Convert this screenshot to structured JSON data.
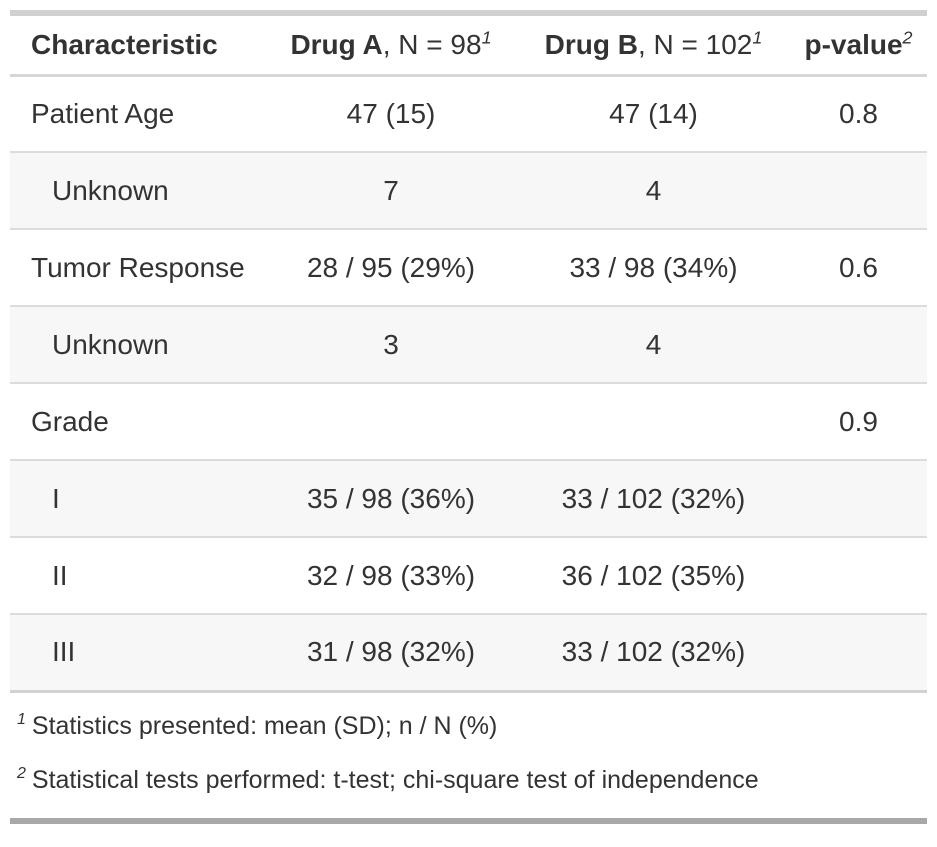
{
  "colors": {
    "text": "#333333",
    "stripe_background": "#f7f7f7",
    "row_border": "#dcdcdc",
    "header_border": "#d6d6d6",
    "table_top_border": "#d0d0d0",
    "table_bottom_border": "#a8a8a8"
  },
  "table": {
    "header": {
      "characteristic": "Characteristic",
      "drug_a_bold": "Drug A",
      "drug_a_rest": ", N = 98",
      "drug_a_footnote_mark": "1",
      "drug_b_bold": "Drug B",
      "drug_b_rest": ", N = 102",
      "drug_b_footnote_mark": "1",
      "p_value_bold": "p-value",
      "p_value_footnote_mark": "2"
    },
    "rows": [
      {
        "label": "Patient Age",
        "indent": false,
        "drug_a": "47 (15)",
        "drug_b": "47 (14)",
        "p_value": "0.8",
        "striped": false
      },
      {
        "label": "Unknown",
        "indent": true,
        "drug_a": "7",
        "drug_b": "4",
        "p_value": "",
        "striped": true
      },
      {
        "label": "Tumor Response",
        "indent": false,
        "drug_a": "28 / 95 (29%)",
        "drug_b": "33 / 98 (34%)",
        "p_value": "0.6",
        "striped": false
      },
      {
        "label": "Unknown",
        "indent": true,
        "drug_a": "3",
        "drug_b": "4",
        "p_value": "",
        "striped": true
      },
      {
        "label": "Grade",
        "indent": false,
        "drug_a": "",
        "drug_b": "",
        "p_value": "0.9",
        "striped": false
      },
      {
        "label": "I",
        "indent": true,
        "drug_a": "35 / 98 (36%)",
        "drug_b": "33 / 102 (32%)",
        "p_value": "",
        "striped": true
      },
      {
        "label": "II",
        "indent": true,
        "drug_a": "32 / 98 (33%)",
        "drug_b": "36 / 102 (35%)",
        "p_value": "",
        "striped": false
      },
      {
        "label": "III",
        "indent": true,
        "drug_a": "31 / 98 (32%)",
        "drug_b": "33 / 102 (32%)",
        "p_value": "",
        "striped": true
      }
    ],
    "footnotes": [
      {
        "marker": "1",
        "text": "Statistics presented: mean (SD); n / N (%)"
      },
      {
        "marker": "2",
        "text": "Statistical tests performed: t-test; chi-square test of independence"
      }
    ]
  },
  "chart_data": {
    "type": "table",
    "title": "",
    "columns": [
      "Characteristic",
      "Drug A, N = 98",
      "Drug B, N = 102",
      "p-value"
    ],
    "rows": [
      [
        "Patient Age",
        "47 (15)",
        "47 (14)",
        "0.8"
      ],
      [
        "Unknown",
        "7",
        "4",
        ""
      ],
      [
        "Tumor Response",
        "28 / 95 (29%)",
        "33 / 98 (34%)",
        "0.6"
      ],
      [
        "Unknown",
        "3",
        "4",
        ""
      ],
      [
        "Grade",
        "",
        "",
        "0.9"
      ],
      [
        "I",
        "35 / 98 (36%)",
        "33 / 102 (32%)",
        ""
      ],
      [
        "II",
        "32 / 98 (33%)",
        "36 / 102 (35%)",
        ""
      ],
      [
        "III",
        "31 / 98 (32%)",
        "33 / 102 (32%)",
        ""
      ]
    ],
    "footnotes": [
      "1 Statistics presented: mean (SD); n / N (%)",
      "2 Statistical tests performed: t-test; chi-square test of independence"
    ],
    "layout_hints": {
      "indented_rows": [
        "Unknown",
        "Unknown",
        "I",
        "II",
        "III"
      ],
      "striped_rows": [
        1,
        3,
        5,
        7
      ],
      "column_alignment": [
        "left",
        "center",
        "center",
        "center"
      ],
      "grid": "horizontal-rules-only"
    }
  }
}
